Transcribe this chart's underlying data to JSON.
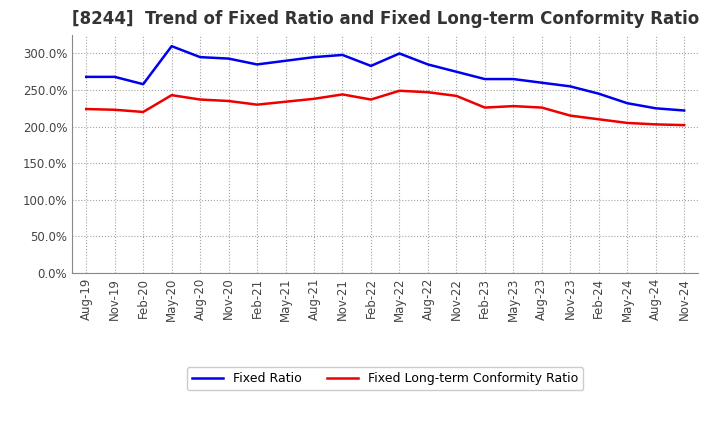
{
  "title": "[8244]  Trend of Fixed Ratio and Fixed Long-term Conformity Ratio",
  "x_labels": [
    "Aug-19",
    "Nov-19",
    "Feb-20",
    "May-20",
    "Aug-20",
    "Nov-20",
    "Feb-21",
    "May-21",
    "Aug-21",
    "Nov-21",
    "Feb-22",
    "May-22",
    "Aug-22",
    "Nov-22",
    "Feb-23",
    "May-23",
    "Aug-23",
    "Nov-23",
    "Feb-24",
    "May-24",
    "Aug-24",
    "Nov-24"
  ],
  "fixed_ratio": [
    268,
    268,
    258,
    310,
    295,
    293,
    285,
    290,
    295,
    298,
    283,
    300,
    285,
    275,
    265,
    265,
    260,
    255,
    245,
    232,
    225,
    222
  ],
  "fixed_lt_ratio": [
    224,
    223,
    220,
    243,
    237,
    235,
    230,
    234,
    238,
    244,
    237,
    249,
    247,
    242,
    226,
    228,
    226,
    215,
    210,
    205,
    203,
    202
  ],
  "ylim": [
    0,
    325
  ],
  "yticks": [
    0,
    50,
    100,
    150,
    200,
    250,
    300
  ],
  "fixed_ratio_color": "#0000EE",
  "fixed_lt_ratio_color": "#EE0000",
  "bg_color": "#FFFFFF",
  "plot_bg_color": "#FFFFFF",
  "grid_color": "#999999",
  "legend_fixed_ratio": "Fixed Ratio",
  "legend_fixed_lt_ratio": "Fixed Long-term Conformity Ratio",
  "title_fontsize": 12,
  "tick_fontsize": 8.5,
  "legend_fontsize": 9
}
